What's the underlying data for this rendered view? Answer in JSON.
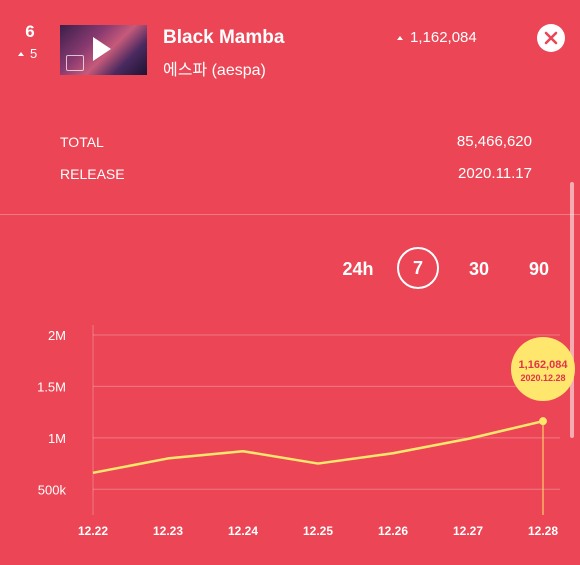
{
  "header": {
    "rank": "6",
    "rank_change": "5",
    "song_title": "Black Mamba",
    "artist": "에스파 (aespa)",
    "stream_change": "1,162,084"
  },
  "stats": {
    "total_label": "TOTAL",
    "total_value": "85,466,620",
    "release_label": "RELEASE",
    "release_value": "2020.11.17"
  },
  "periods": {
    "p24h": "24h",
    "p7": "7",
    "p30": "30",
    "p90": "90",
    "selected": "7"
  },
  "icons": {
    "thumbnail_play": "play-icon",
    "close": "close-icon",
    "trend": "triangle-up-icon"
  },
  "colors": {
    "background": "#ec4555",
    "line": "#ffe66d",
    "highlight_bubble": "#ffe66d",
    "bubble_text": "#e0344a"
  },
  "chart_data": {
    "type": "line",
    "categories": [
      "12.22",
      "12.23",
      "12.24",
      "12.25",
      "12.26",
      "12.27",
      "12.28"
    ],
    "values": [
      660000,
      800000,
      870000,
      750000,
      850000,
      990000,
      1162084
    ],
    "yticks": [
      "500k",
      "1M",
      "1.5M",
      "2M"
    ],
    "ytick_values": [
      500000,
      1000000,
      1500000,
      2000000
    ],
    "ylim": [
      250000,
      2000000
    ],
    "highlight": {
      "index": 6,
      "value_label": "1,162,084",
      "date_label": "2020.12.28"
    }
  }
}
